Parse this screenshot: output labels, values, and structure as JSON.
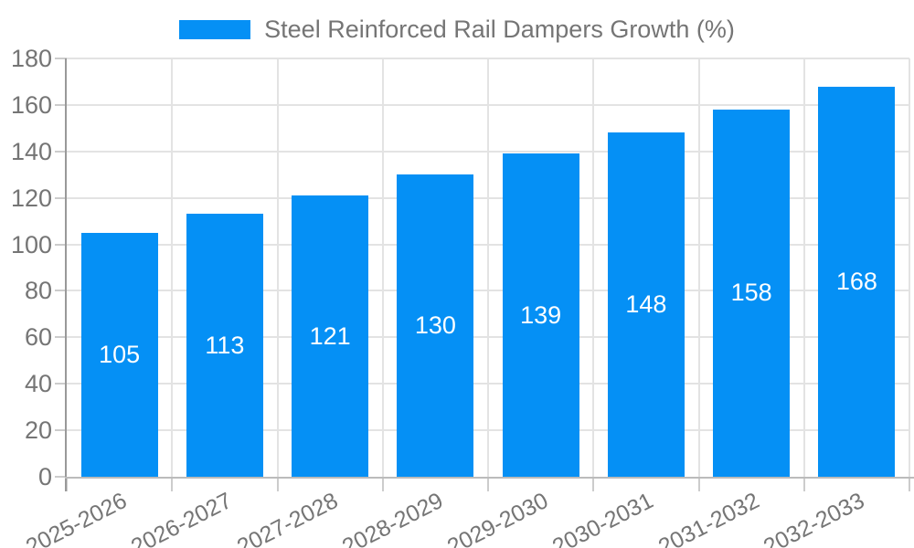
{
  "legend": {
    "label": "Steel Reinforced Rail Dampers Growth (%)"
  },
  "colors": {
    "bar": "#0590f5",
    "bar_label_text": "#ffffff",
    "axis_text": "#757575",
    "legend_text": "#757575",
    "grid_line": "#e3e3e3",
    "tick_line": "#cccccc",
    "y_axis_line": "#999999",
    "x_axis_line": "#bbbbbb",
    "background": "#ffffff"
  },
  "chart_data": {
    "type": "bar",
    "title": "Steel Reinforced Rail Dampers Growth (%)",
    "categories": [
      "2025-2026",
      "2026-2027",
      "2027-2028",
      "2028-2029",
      "2029-2030",
      "2030-2031",
      "2031-2032",
      "2032-2033"
    ],
    "values": [
      105,
      113,
      121,
      130,
      139,
      148,
      158,
      168
    ],
    "xlabel": "",
    "ylabel": "",
    "ylim": [
      0,
      180
    ],
    "yticks": [
      0,
      20,
      40,
      60,
      80,
      100,
      120,
      140,
      160,
      180
    ],
    "grid": "horizontal-and-vertical",
    "legend_position": "top-center",
    "bar_labels": "inside-center-white"
  }
}
